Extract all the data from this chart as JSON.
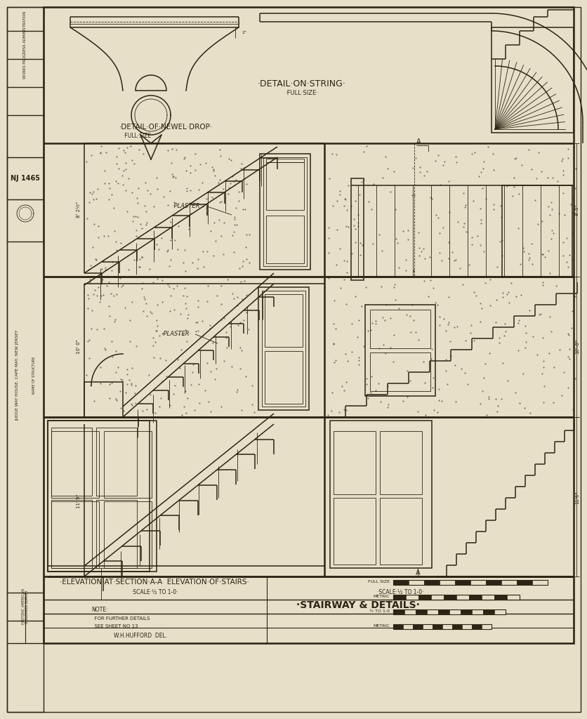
{
  "paper_color": "#e8dfc8",
  "line_color": "#2d2415",
  "lw_main": 1.1,
  "lw_thin": 0.6,
  "lw_thick": 1.8,
  "title": "STAIRWAY & DETAILS",
  "subtitle_left": "ELEVATION AT SECTION A-A",
  "subtitle_right": "ELEVATION OF STAIRS",
  "scale_left": "SCALE 1/2 TO 1-0",
  "scale_right": "SCALE 1/2 TO 1-0",
  "detail_string": "DETAIL ON STRING",
  "detail_string_sub": "FULL SIZE",
  "detail_newel": "DETAIL OF NEWEL DROP",
  "detail_newel_sub": "FULL SIZE",
  "note_text": "NOTE:\n  FOR FURTHER DETAILS\n  SEE SHEET NO 13",
  "drawn_by": "W.H.HUFFORD  DEL.",
  "wpa_text": "WORKS PROGRESS ADMINISTRATION",
  "habs_text": "HISTORIC AMERICAN\nBUILDINGS SURVEY",
  "sheet_no": "NJ 1465",
  "structure_name": "JUDGE WAY HOUSE, CAPE MAY, NEW JERSEY",
  "plaster1": "PLASTER",
  "plaster2": "PLASTER"
}
